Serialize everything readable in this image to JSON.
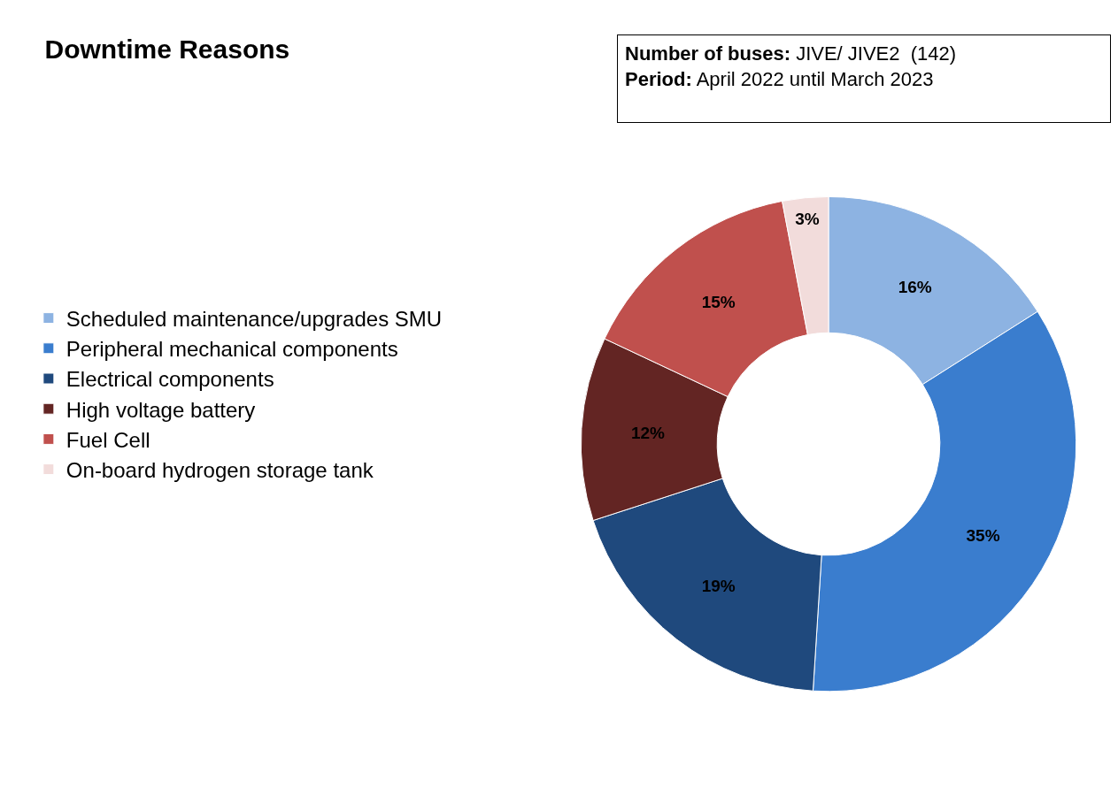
{
  "chart_data": {
    "type": "donut",
    "title": "Downtime Reasons",
    "categories": [
      "Scheduled maintenance/upgrades SMU",
      "Peripheral mechanical components",
      "Electrical components",
      "High voltage battery",
      "Fuel Cell",
      "On-board hydrogen storage tank"
    ],
    "values": [
      16,
      35,
      19,
      12,
      15,
      3
    ],
    "colors": [
      "#8db3e2",
      "#3a7dce",
      "#1f497d",
      "#632523",
      "#c0504d",
      "#f2dcdb"
    ],
    "value_labels": [
      "16%",
      "35%",
      "19%",
      "12%",
      "15%",
      "3%"
    ],
    "legend": "left",
    "annotations": [
      "Number of buses: JIVE/ JIVE2  (142)\nPeriod: April 2022 until March 2023"
    ]
  }
}
